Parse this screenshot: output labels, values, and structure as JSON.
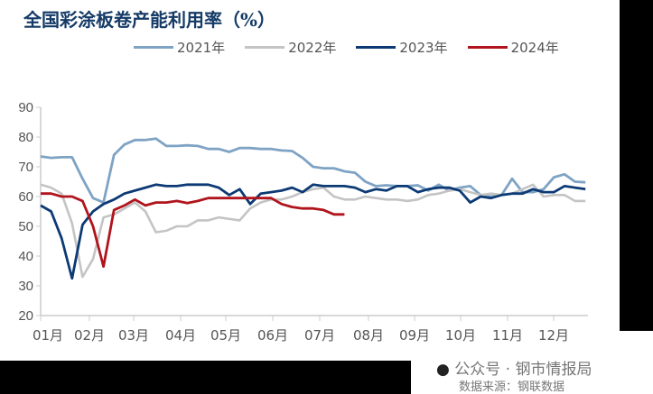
{
  "chart_data": {
    "type": "line",
    "title": "全国彩涂板卷产能利用率（%）",
    "xlabel": "",
    "ylabel": "",
    "ylim": [
      20,
      90
    ],
    "yticks": [
      20,
      30,
      40,
      50,
      60,
      70,
      80,
      90
    ],
    "xticklabels": [
      "01月",
      "02月",
      "03月",
      "04月",
      "05月",
      "06月",
      "07月",
      "08月",
      "09月",
      "10月",
      "11月",
      "12月"
    ],
    "x_unit": "week",
    "grid": false,
    "legend": "top",
    "series": [
      {
        "name": "2021年",
        "color": "#7fa3c4",
        "values": [
          73.5,
          73,
          73.2,
          73.2,
          66,
          59.5,
          58,
          74,
          77.5,
          79,
          79,
          79.5,
          77,
          77,
          77.2,
          77,
          76,
          76,
          75,
          76.3,
          76.3,
          76,
          76,
          75.5,
          75.3,
          73,
          70,
          69.5,
          69.5,
          68.5,
          68,
          65,
          63.5,
          63.8,
          63.5,
          63.5,
          63.8,
          62,
          64,
          62,
          63,
          63.5,
          60.5,
          60,
          60.5,
          66,
          61.5,
          61.5,
          62.5,
          66.5,
          67.5,
          65,
          64.8
        ]
      },
      {
        "name": "2022年",
        "color": "#c4c4c4",
        "values": [
          64,
          63,
          61,
          51,
          33,
          39,
          53,
          54,
          56,
          58,
          55,
          48,
          48.5,
          50,
          50,
          52,
          52,
          53,
          52.5,
          52,
          56,
          58,
          59,
          59,
          60,
          61.5,
          62.5,
          63,
          60,
          59,
          59,
          60,
          59.5,
          59,
          59,
          58.5,
          59,
          60.5,
          61,
          62,
          62.5,
          61.5,
          60.5,
          61,
          60.5,
          61,
          62.5,
          64,
          60,
          60.5,
          60.5,
          58.5,
          58.5
        ]
      },
      {
        "name": "2023年",
        "color": "#0c3a74",
        "values": [
          57,
          55,
          46,
          32.5,
          50.5,
          55,
          57.5,
          59,
          61,
          62,
          63,
          64,
          63.5,
          63.5,
          64,
          64,
          64,
          63,
          60.5,
          62.5,
          57.5,
          61,
          61.5,
          62,
          63,
          61.5,
          64,
          63.5,
          63.5,
          63.5,
          63,
          61.5,
          62.5,
          62,
          63.5,
          63.5,
          61.5,
          62.5,
          63,
          63,
          62,
          58,
          60,
          59.5,
          60.5,
          61,
          61,
          62.5,
          61.5,
          61.5,
          63.5,
          63,
          62.5
        ]
      },
      {
        "name": "2024年",
        "color": "#b0141c",
        "values": [
          61,
          61,
          60,
          60,
          58.5,
          50,
          36.5,
          55.5,
          57,
          59,
          57,
          58,
          58,
          58.5,
          57.8,
          58.5,
          59.5,
          59.5,
          59.5,
          59.5,
          59.5,
          59.5,
          59.5,
          57.5,
          56.5,
          56,
          56,
          55.5,
          54,
          54
        ]
      }
    ]
  },
  "watermark": {
    "line1": "公众号 · 钢市情报局",
    "line2": "数据来源：钢联数据",
    "icon": "wechat-icon"
  }
}
